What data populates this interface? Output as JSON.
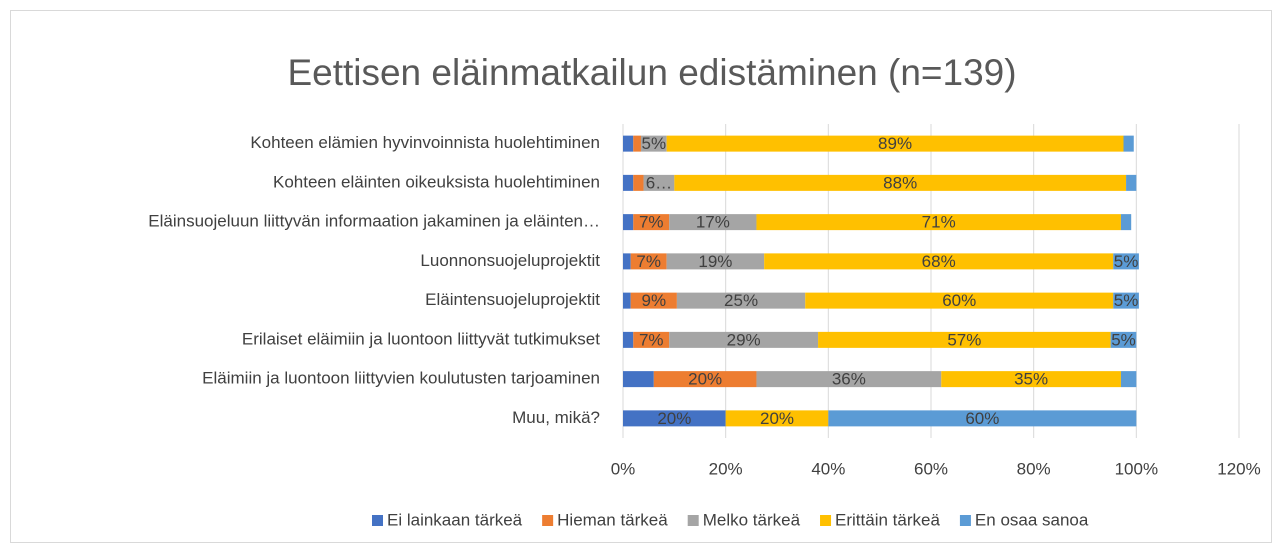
{
  "chart_data": {
    "type": "stacked-barh",
    "title": "Eettisen eläinmatkailun edistäminen (n=139)",
    "categories": [
      "Kohteen elämien hyvinvoinnista huolehtiminen",
      "Kohteen eläinten oikeuksista huolehtiminen",
      "Eläinsuojeluun liittyvän informaation jakaminen ja eläinten…",
      "Luonnonsuojeluprojektit",
      "Eläintensuojeluprojektit",
      "Erilaiset eläimiin ja luontoon liittyvät tutkimukset",
      "Eläimiin ja luontoon liittyvien koulutusten tarjoaminen",
      "Muu, mikä?"
    ],
    "series": [
      {
        "name": "Ei lainkaan tärkeä",
        "color": "#4472c4",
        "values": [
          2,
          2,
          2,
          1.5,
          1.5,
          2,
          6,
          20
        ],
        "value_labels": [
          null,
          null,
          null,
          null,
          null,
          null,
          null,
          "20%"
        ]
      },
      {
        "name": "Hieman tärkeä",
        "color": "#ed7d31",
        "values": [
          1.5,
          2,
          7,
          7,
          9,
          7,
          20,
          null
        ],
        "value_labels": [
          null,
          null,
          "7%",
          "7%",
          "9%",
          "7%",
          "20%",
          null
        ]
      },
      {
        "name": "Melko tärkeä",
        "color": "#a5a5a5",
        "values": [
          5,
          6,
          17,
          19,
          25,
          29,
          36,
          null
        ],
        "value_labels": [
          "5%",
          "6…",
          "17%",
          "19%",
          "25%",
          "29%",
          "36%",
          null
        ]
      },
      {
        "name": "Erittäin tärkeä",
        "color": "#ffc000",
        "values": [
          89,
          88,
          71,
          68,
          60,
          57,
          35,
          20
        ],
        "value_labels": [
          "89%",
          "88%",
          "71%",
          "68%",
          "60%",
          "57%",
          "35%",
          "20%"
        ]
      },
      {
        "name": "En osaa sanoa",
        "color": "#5b9bd5",
        "values": [
          2,
          2,
          2,
          5,
          5,
          5,
          3,
          60
        ],
        "value_labels": [
          null,
          null,
          null,
          "5%",
          "5%",
          "5%",
          null,
          "60%"
        ]
      }
    ],
    "xlim": [
      0,
      120
    ],
    "xticks": [
      {
        "value": 0,
        "label": "0%"
      },
      {
        "value": 20,
        "label": "20%"
      },
      {
        "value": 40,
        "label": "40%"
      },
      {
        "value": 60,
        "label": "60%"
      },
      {
        "value": 80,
        "label": "80%"
      },
      {
        "value": 100,
        "label": "100%"
      },
      {
        "value": 120,
        "label": "120%"
      }
    ],
    "grid": true,
    "legend": "bottom"
  }
}
